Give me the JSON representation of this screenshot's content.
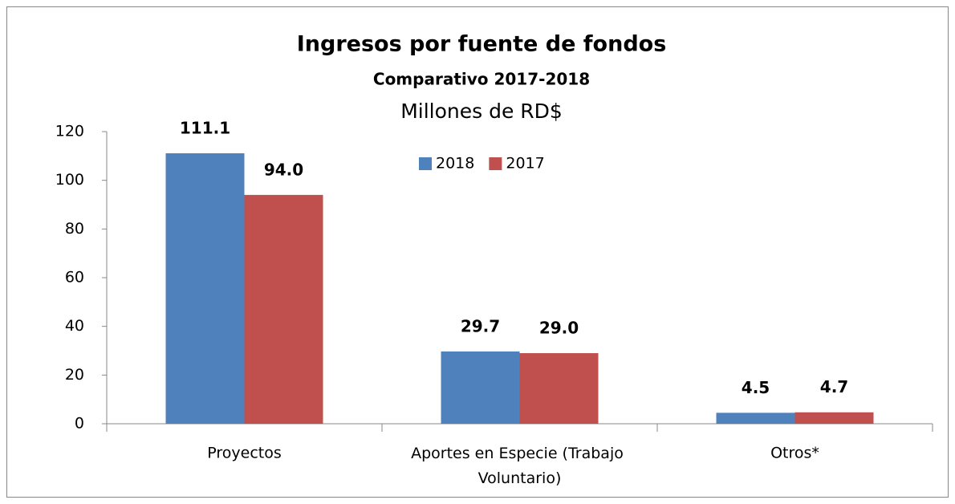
{
  "chart_data": {
    "type": "bar",
    "title": "Ingresos por fuente de fondos",
    "subtitle": "Comparativo 2017-2018",
    "unit_label": "Millones de RD$",
    "categories": [
      "Proyectos",
      "Aportes en Especie (Trabajo Voluntario)",
      "Otros*"
    ],
    "series": [
      {
        "name": "2018",
        "color": "#4f81bd",
        "label_color": "#2e75b6",
        "values": [
          111.1,
          29.7,
          4.5
        ],
        "value_labels": [
          "111.1",
          "29.7",
          "4.5"
        ]
      },
      {
        "name": "2017",
        "color": "#c0504d",
        "label_color": "#ff0000",
        "values": [
          94,
          29,
          4.7
        ],
        "value_labels": [
          "94.0",
          "29.0",
          "4.7"
        ]
      }
    ],
    "ylim": [
      0,
      120
    ],
    "yticks": [
      0,
      20,
      40,
      60,
      80,
      100,
      120
    ],
    "grid": false,
    "legend": "top"
  }
}
